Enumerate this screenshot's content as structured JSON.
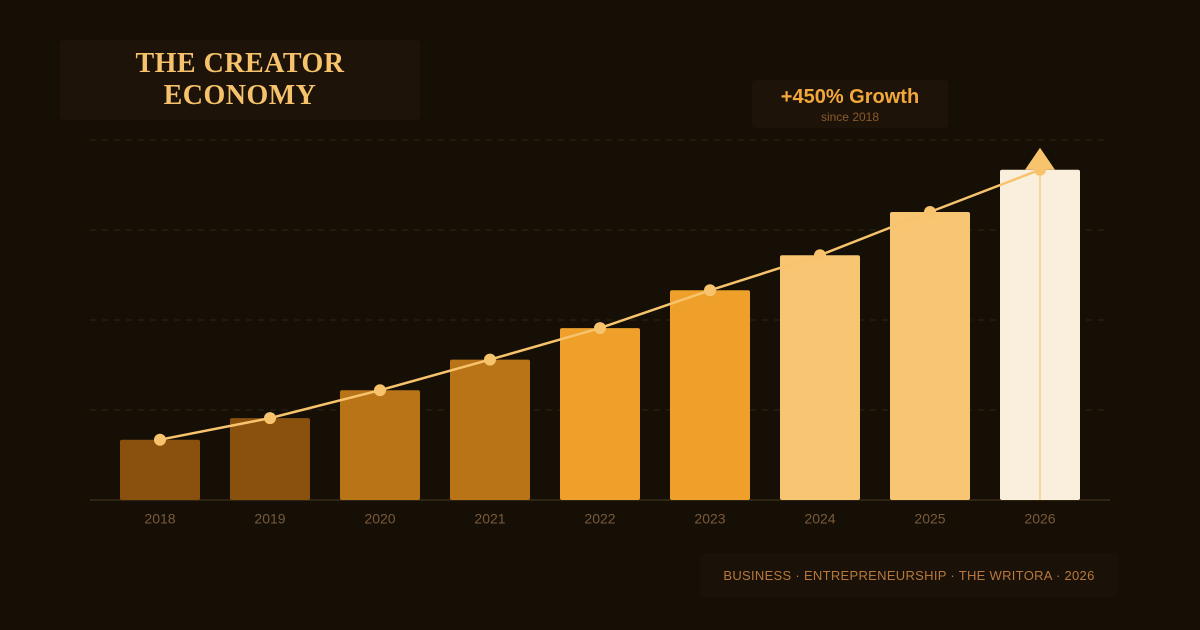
{
  "chart_data": {
    "type": "bar",
    "title": "THE CREATOR ECONOMY",
    "annotation": "+450% Growth",
    "annotation_note": "since 2018",
    "footer": "BUSINESS · ENTREPRENEURSHIP · THE WRITORA · 2026",
    "categories": [
      "2018",
      "2019",
      "2020",
      "2021",
      "2022",
      "2023",
      "2024",
      "2025",
      "2026"
    ],
    "values": [
      0.67,
      0.91,
      1.22,
      1.56,
      1.91,
      2.33,
      2.72,
      3.2,
      3.67
    ],
    "colors": [
      "#8a500e",
      "#8a500e",
      "#b87417",
      "#b87417",
      "#eea02a",
      "#eea02a",
      "#f8c673",
      "#f8c673",
      "#faefdc"
    ],
    "line_color": "#f7c36d",
    "ylim": [
      0,
      4
    ],
    "yticks": [
      1,
      2,
      3,
      4
    ],
    "grid": true
  }
}
